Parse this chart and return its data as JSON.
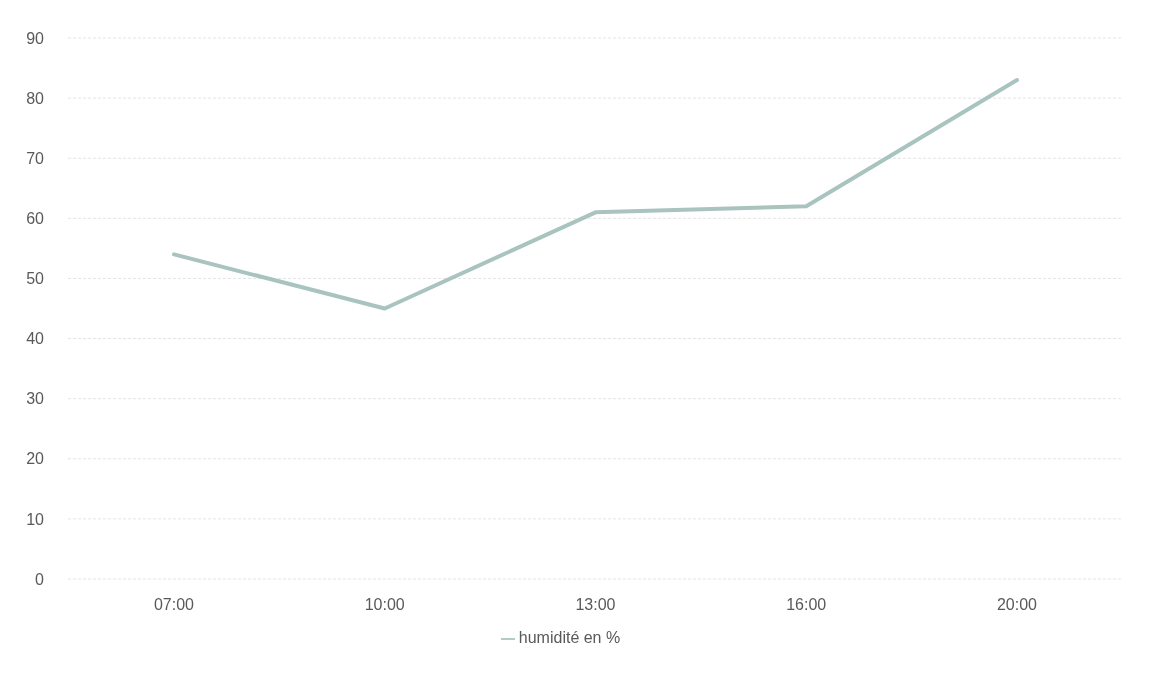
{
  "chart_data": {
    "type": "line",
    "categories": [
      "07:00",
      "10:00",
      "13:00",
      "16:00",
      "20:00"
    ],
    "series": [
      {
        "name": "humidité en %",
        "color": "#a9c4bf",
        "values": [
          54,
          45,
          61,
          62,
          83
        ]
      }
    ],
    "ylim": [
      0,
      90
    ],
    "yticks": [
      0,
      10,
      20,
      30,
      40,
      50,
      60,
      70,
      80,
      90
    ],
    "grid": "y",
    "legend": "bottom",
    "marker": "none"
  }
}
